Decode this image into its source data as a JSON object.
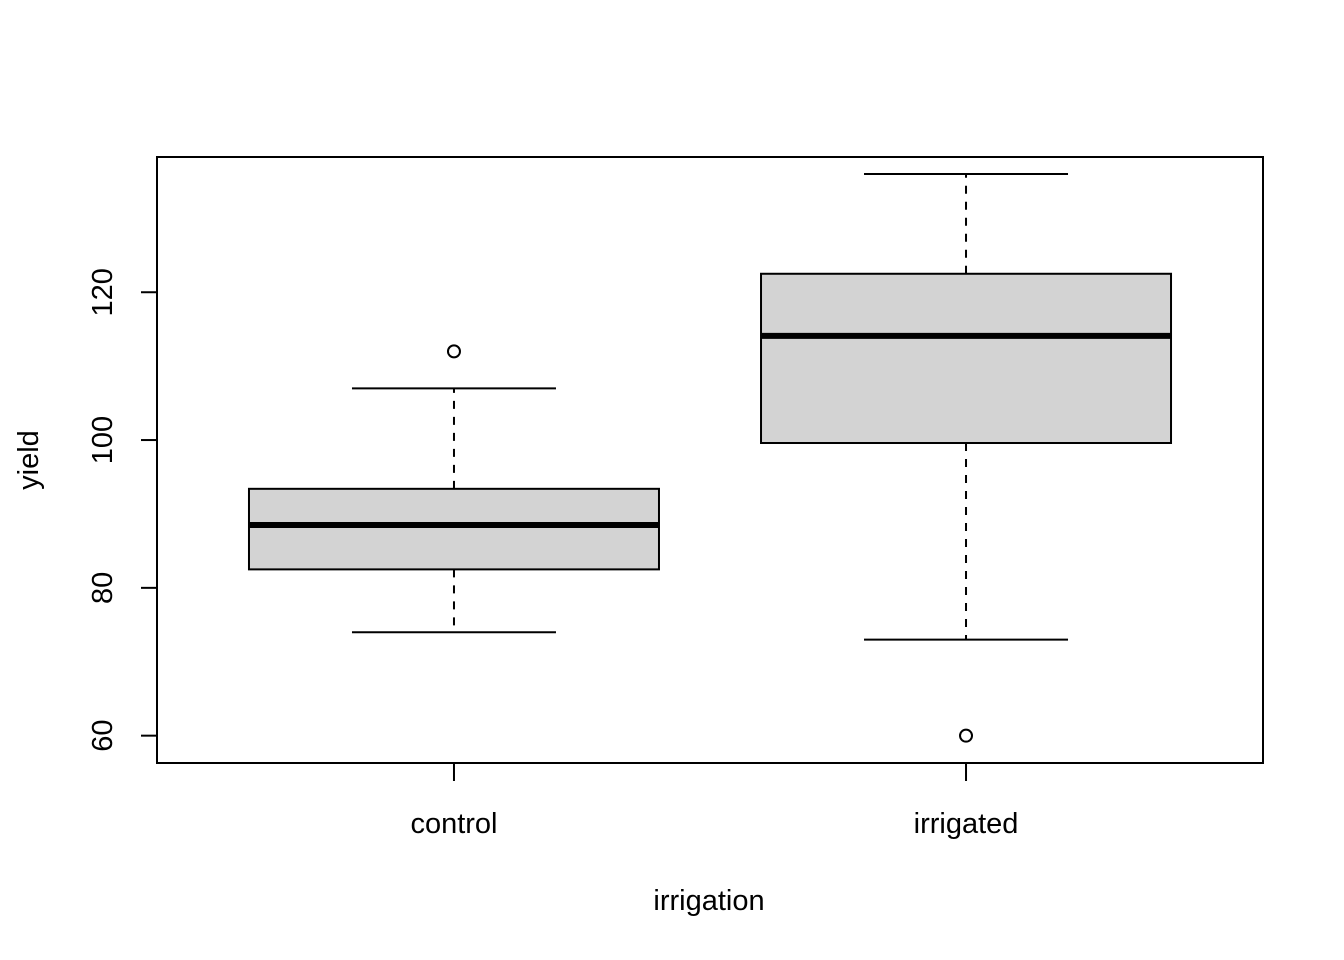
{
  "chart_data": {
    "type": "boxplot",
    "title": "",
    "xlabel": "irrigation",
    "ylabel": "yield",
    "ylim": [
      56.3,
      138.3
    ],
    "yticks": [
      60,
      80,
      100,
      120
    ],
    "grid": false,
    "legend": "none",
    "box_fill": "#d3d3d3",
    "categories": [
      "control",
      "irrigated"
    ],
    "boxes": [
      {
        "category": "control",
        "whisker_low": 74,
        "q1": 82.5,
        "median": 88.5,
        "q3": 93.4,
        "whisker_high": 107,
        "outliers": [
          112
        ]
      },
      {
        "category": "irrigated",
        "whisker_low": 73,
        "q1": 99.6,
        "median": 114.1,
        "q3": 122.5,
        "whisker_high": 136,
        "outliers": [
          60
        ]
      }
    ]
  }
}
